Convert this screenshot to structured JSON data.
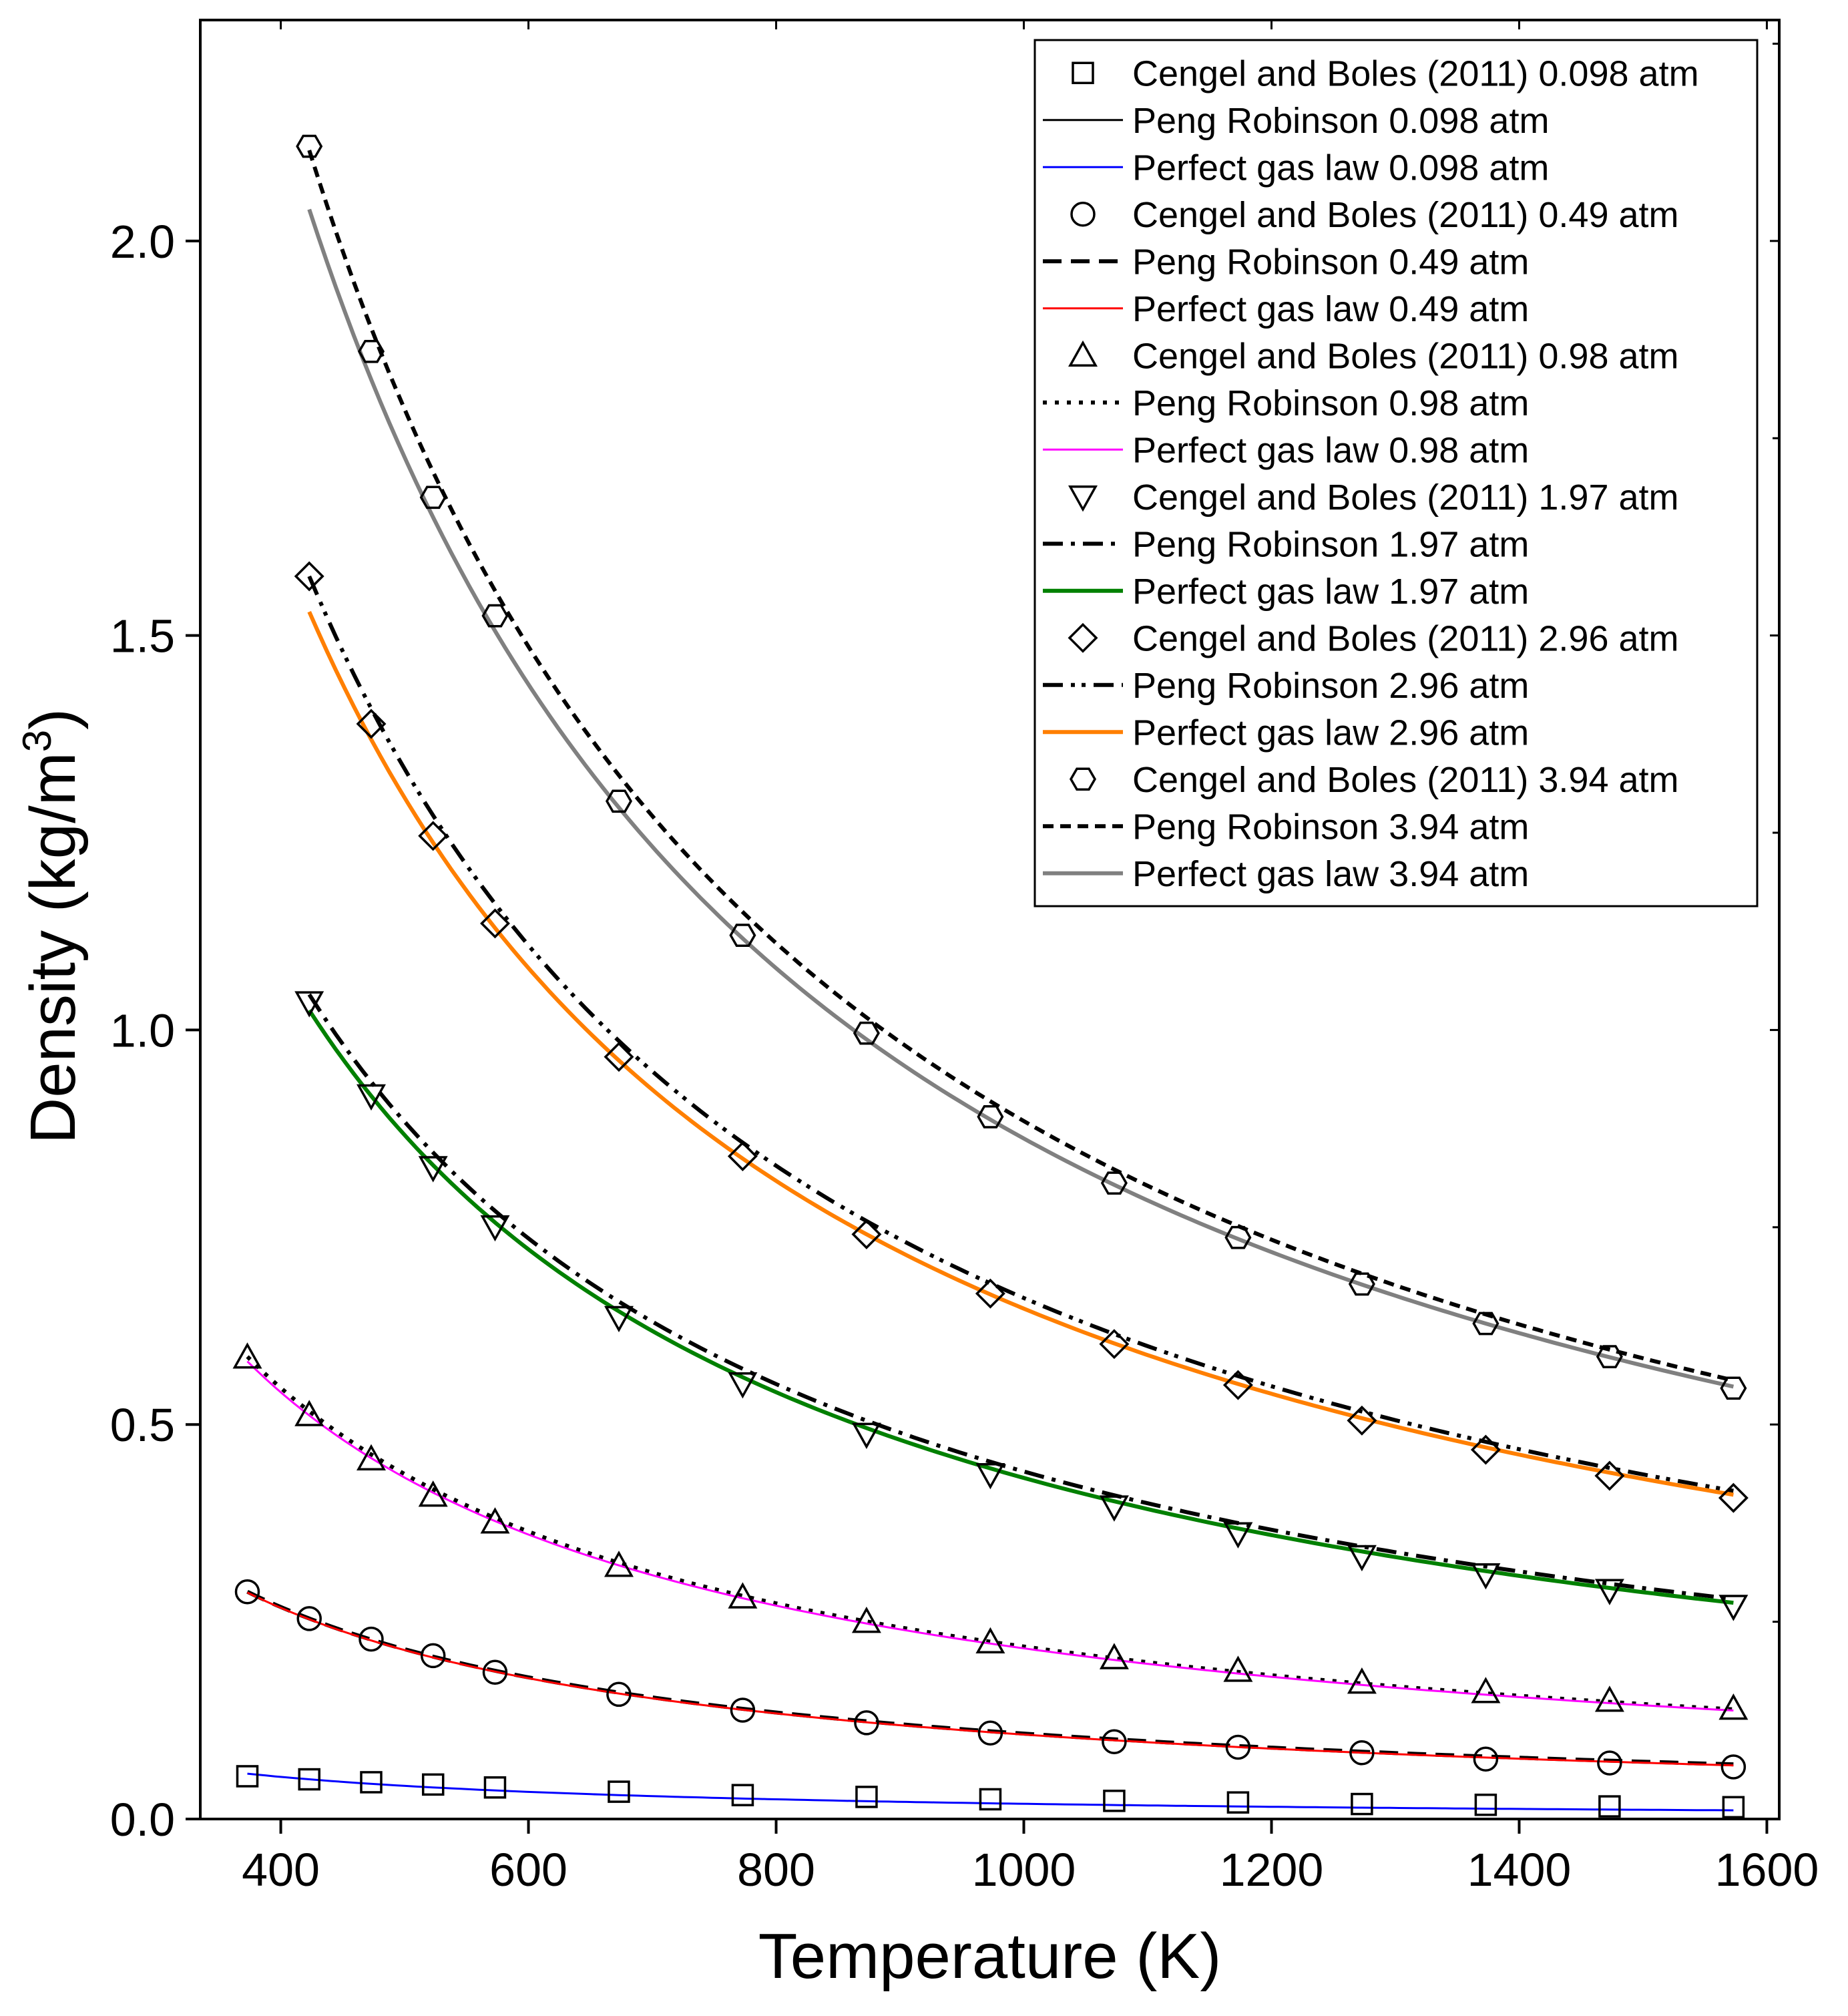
{
  "chart_data": {
    "type": "line",
    "title": "",
    "xlabel": "Temperature (K)",
    "ylabel_main": "Density (kg/m",
    "ylabel_sup": "3",
    "ylabel_close": ")",
    "xlim": [
      335,
      1610
    ],
    "ylim": [
      0,
      2.28
    ],
    "xticks": [
      400,
      600,
      800,
      1000,
      1200,
      1400,
      1600
    ],
    "xtick_labels": [
      "400",
      "600",
      "800",
      "1000",
      "1200",
      "1400",
      "1600"
    ],
    "yticks": [
      0.0,
      0.5,
      1.0,
      1.5,
      2.0
    ],
    "ytick_labels": [
      "0.0",
      "0.5",
      "1.0",
      "1.5",
      "2.0"
    ],
    "grid": false,
    "legend_position": "top-right",
    "series": [
      {
        "name": "Cengel and Boles (2011) 0.098 atm",
        "kind": "markers",
        "marker": "square",
        "pressure_atm": 0.098,
        "x": [
          373,
          423,
          473,
          523,
          573,
          673,
          773,
          873,
          973,
          1073,
          1173,
          1273,
          1373,
          1473,
          1573
        ],
        "y": [
          0.0542,
          0.0503,
          0.0466,
          0.0437,
          0.04,
          0.0346,
          0.0303,
          0.028,
          0.025,
          0.023,
          0.021,
          0.019,
          0.018,
          0.016,
          0.015
        ]
      },
      {
        "name": "Peng Robinson 0.098 atm",
        "kind": "line",
        "color": "#000000",
        "dash": "",
        "width": 3,
        "pressure_atm": 0.098
      },
      {
        "name": "Perfect gas law 0.098 atm",
        "kind": "line",
        "color": "#0000ff",
        "dash": "",
        "width": 3,
        "pressure_atm": 0.098
      },
      {
        "name": "Cengel and Boles (2011) 0.49 atm",
        "kind": "markers",
        "marker": "circle",
        "pressure_atm": 0.49,
        "x": [
          373,
          423,
          473,
          523,
          573,
          673,
          773,
          873,
          973,
          1073,
          1173,
          1273,
          1373,
          1473,
          1573
        ],
        "y": [
          0.288,
          0.254,
          0.228,
          0.207,
          0.186,
          0.158,
          0.138,
          0.122,
          0.109,
          0.098,
          0.091,
          0.084,
          0.076,
          0.071,
          0.066
        ]
      },
      {
        "name": "Peng Robinson 0.49 atm",
        "kind": "line",
        "color": "#000000",
        "dash": "28,14",
        "width": 6,
        "pressure_atm": 0.49
      },
      {
        "name": "Perfect gas law 0.49 atm",
        "kind": "line",
        "color": "#ff0000",
        "dash": "",
        "width": 3,
        "pressure_atm": 0.49
      },
      {
        "name": "Cengel and Boles (2011) 0.98 atm",
        "kind": "markers",
        "marker": "triangle-up",
        "pressure_atm": 0.98,
        "x": [
          373,
          423,
          473,
          523,
          573,
          673,
          773,
          873,
          973,
          1073,
          1173,
          1273,
          1373,
          1473,
          1573
        ],
        "y": [
          0.585,
          0.512,
          0.456,
          0.41,
          0.376,
          0.321,
          0.281,
          0.25,
          0.224,
          0.204,
          0.188,
          0.173,
          0.161,
          0.15,
          0.14
        ]
      },
      {
        "name": "Peng Robinson 0.98 atm",
        "kind": "line",
        "color": "#000000",
        "dash": "6,12",
        "width": 6,
        "pressure_atm": 0.98
      },
      {
        "name": "Perfect gas law 0.98 atm",
        "kind": "line",
        "color": "#ff00ff",
        "dash": "",
        "width": 3,
        "pressure_atm": 0.98
      },
      {
        "name": "Cengel and Boles (2011) 1.97 atm",
        "kind": "markers",
        "marker": "triangle-down",
        "pressure_atm": 1.97,
        "x": [
          423,
          473,
          523,
          573,
          673,
          773,
          873,
          973,
          1073,
          1173,
          1273,
          1373,
          1473,
          1573
        ],
        "y": [
          1.035,
          0.917,
          0.826,
          0.751,
          0.636,
          0.552,
          0.488,
          0.437,
          0.396,
          0.362,
          0.333,
          0.31,
          0.29,
          0.27
        ]
      },
      {
        "name": "Peng Robinson 1.97 atm",
        "kind": "line",
        "color": "#000000",
        "dash": "30,12,6,12",
        "width": 6,
        "pressure_atm": 1.97
      },
      {
        "name": "Perfect gas law 1.97 atm",
        "kind": "line",
        "color": "#008000",
        "dash": "",
        "width": 6,
        "pressure_atm": 1.97
      },
      {
        "name": "Cengel and Boles (2011) 2.96 atm",
        "kind": "markers",
        "marker": "diamond",
        "pressure_atm": 2.96,
        "x": [
          423,
          473,
          523,
          573,
          673,
          773,
          873,
          973,
          1073,
          1173,
          1273,
          1373,
          1473,
          1573
        ],
        "y": [
          1.575,
          1.388,
          1.246,
          1.135,
          0.966,
          0.84,
          0.741,
          0.666,
          0.602,
          0.55,
          0.505,
          0.468,
          0.435,
          0.407
        ]
      },
      {
        "name": "Peng Robinson 2.96 atm",
        "kind": "line",
        "color": "#000000",
        "dash": "30,12,6,10,6,12",
        "width": 6,
        "pressure_atm": 2.96
      },
      {
        "name": "Perfect gas law 2.96 atm",
        "kind": "line",
        "color": "#ff7f00",
        "dash": "",
        "width": 6,
        "pressure_atm": 2.96
      },
      {
        "name": "Cengel and Boles (2011) 3.94 atm",
        "kind": "markers",
        "marker": "hexagon",
        "pressure_atm": 3.94,
        "x": [
          423,
          473,
          523,
          573,
          673,
          773,
          873,
          973,
          1073,
          1173,
          1273,
          1373,
          1473,
          1573
        ],
        "y": [
          2.12,
          1.86,
          1.675,
          1.525,
          1.29,
          1.12,
          0.996,
          0.89,
          0.806,
          0.737,
          0.678,
          0.628,
          0.586,
          0.546
        ]
      },
      {
        "name": "Peng Robinson 3.94 atm",
        "kind": "line",
        "color": "#000000",
        "dash": "16,10",
        "width": 6,
        "pressure_atm": 3.94
      },
      {
        "name": "Perfect gas law 3.94 atm",
        "kind": "line",
        "color": "#808080",
        "dash": "",
        "width": 6,
        "pressure_atm": 3.94
      }
    ],
    "curves": [
      {
        "series": "Perfect gas law 0.098 atm",
        "x": [
          373,
          1573
        ],
        "y": [
          0.0575,
          0.011
        ]
      },
      {
        "series": "Peng Robinson 0.49 atm",
        "x": [
          373,
          1573
        ],
        "y": [
          0.288,
          0.0693
        ]
      },
      {
        "series": "Perfect gas law 0.49 atm",
        "x": [
          373,
          1573
        ],
        "y": [
          0.287,
          0.068
        ]
      },
      {
        "series": "Peng Robinson 0.98 atm",
        "x": [
          373,
          1573
        ],
        "y": [
          0.586,
          0.139
        ]
      },
      {
        "series": "Perfect gas law 0.98 atm",
        "x": [
          373,
          1573
        ],
        "y": [
          0.58,
          0.1375
        ]
      },
      {
        "series": "Peng Robinson 1.97 atm",
        "x": [
          423,
          1573
        ],
        "y": [
          1.045,
          0.279
        ]
      },
      {
        "series": "Perfect gas law 1.97 atm",
        "x": [
          423,
          1573
        ],
        "y": [
          1.025,
          0.274
        ]
      },
      {
        "series": "Peng Robinson 2.96 atm",
        "x": [
          423,
          1573
        ],
        "y": [
          1.575,
          0.416
        ]
      },
      {
        "series": "Perfect gas law 2.96 atm",
        "x": [
          423,
          1573
        ],
        "y": [
          1.53,
          0.411
        ]
      },
      {
        "series": "Peng Robinson 3.94 atm",
        "x": [
          423,
          1573
        ],
        "y": [
          2.115,
          0.556
        ]
      },
      {
        "series": "Perfect gas law 3.94 atm",
        "x": [
          423,
          1573
        ],
        "y": [
          2.04,
          0.548
        ]
      }
    ]
  }
}
